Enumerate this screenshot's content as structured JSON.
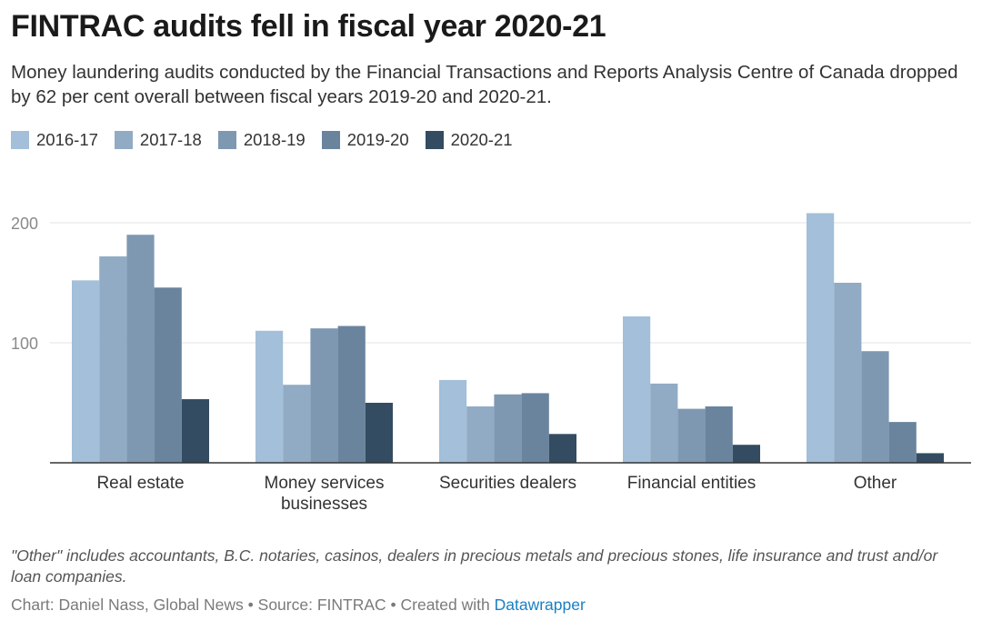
{
  "chart_data": {
    "type": "bar",
    "title": "FINTRAC audits fell in fiscal year 2020-21",
    "subtitle": "Money laundering audits conducted by the Financial Transactions and Reports Analysis Centre of Canada dropped by 62 per cent overall between fiscal years 2019-20 and 2020-21.",
    "categories": [
      [
        "Real estate"
      ],
      [
        "Money services",
        "businesses"
      ],
      [
        "Securities dealers"
      ],
      [
        "Financial entities"
      ],
      [
        "Other"
      ]
    ],
    "series": [
      {
        "name": "2016-17",
        "color": "#a3bfd9",
        "values": [
          152,
          110,
          69,
          122,
          208
        ]
      },
      {
        "name": "2017-18",
        "color": "#91abc5",
        "values": [
          172,
          65,
          47,
          66,
          150
        ]
      },
      {
        "name": "2018-19",
        "color": "#7e98b2",
        "values": [
          190,
          112,
          57,
          45,
          93
        ]
      },
      {
        "name": "2019-20",
        "color": "#6a849e",
        "values": [
          146,
          114,
          58,
          47,
          34
        ]
      },
      {
        "name": "2020-21",
        "color": "#334c61",
        "values": [
          53,
          50,
          24,
          15,
          8
        ]
      }
    ],
    "yticks": [
      100,
      200
    ],
    "ylim": [
      0,
      210
    ],
    "grid": true,
    "legend_position": "top-left"
  },
  "note": "\"Other\" includes accountants, B.C. notaries, casinos, dealers in precious metals and precious stones, life insurance and trust and/or loan companies.",
  "credit": {
    "prefix": "Chart: Daniel Nass, Global News • Source: FINTRAC • Created with ",
    "link": "Datawrapper"
  }
}
